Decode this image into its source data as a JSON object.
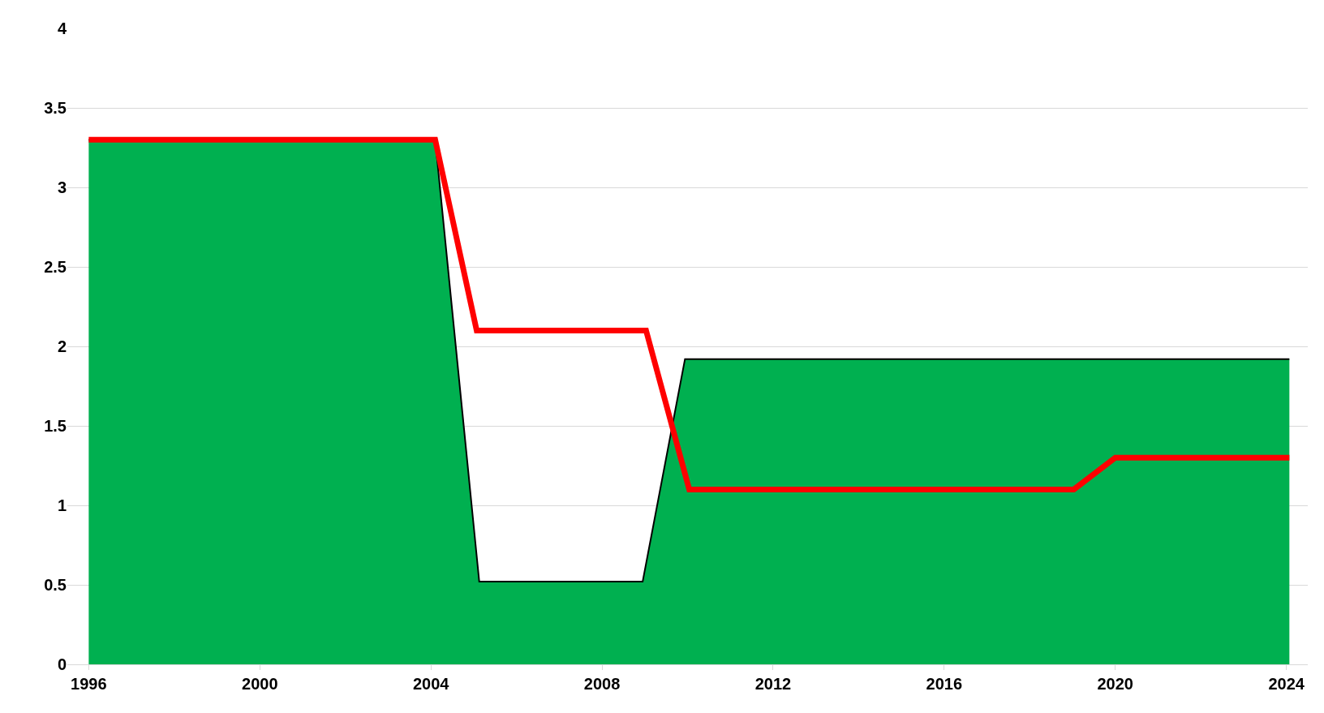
{
  "chart_data": {
    "type": "area",
    "xlim": [
      1995.5,
      2024.5
    ],
    "xticks": [
      1996,
      2000,
      2004,
      2008,
      2012,
      2016,
      2020,
      2024
    ],
    "ylim": [
      0,
      4
    ],
    "yticks": [
      0,
      0.5,
      1,
      1.5,
      2,
      2.5,
      3,
      3.5,
      4
    ],
    "grid": "y",
    "marker": "none",
    "series": [
      {
        "color": "#00b050",
        "x": [
          1996,
          2004.1,
          2005.13,
          2008.95,
          2009.94,
          2024.07
        ],
        "values": [
          3.3,
          3.3,
          0.52,
          0.52,
          1.92,
          1.92
        ]
      },
      {
        "type": "line",
        "color": "#ff0000",
        "line_style": "solid",
        "x": [
          1996,
          2004.1,
          2005.07,
          2009.03,
          2010.04,
          2019.03,
          2020.0,
          2024.07
        ],
        "values": [
          3.3,
          3.3,
          2.1,
          2.1,
          1.1,
          1.1,
          1.3,
          1.3
        ]
      }
    ]
  }
}
